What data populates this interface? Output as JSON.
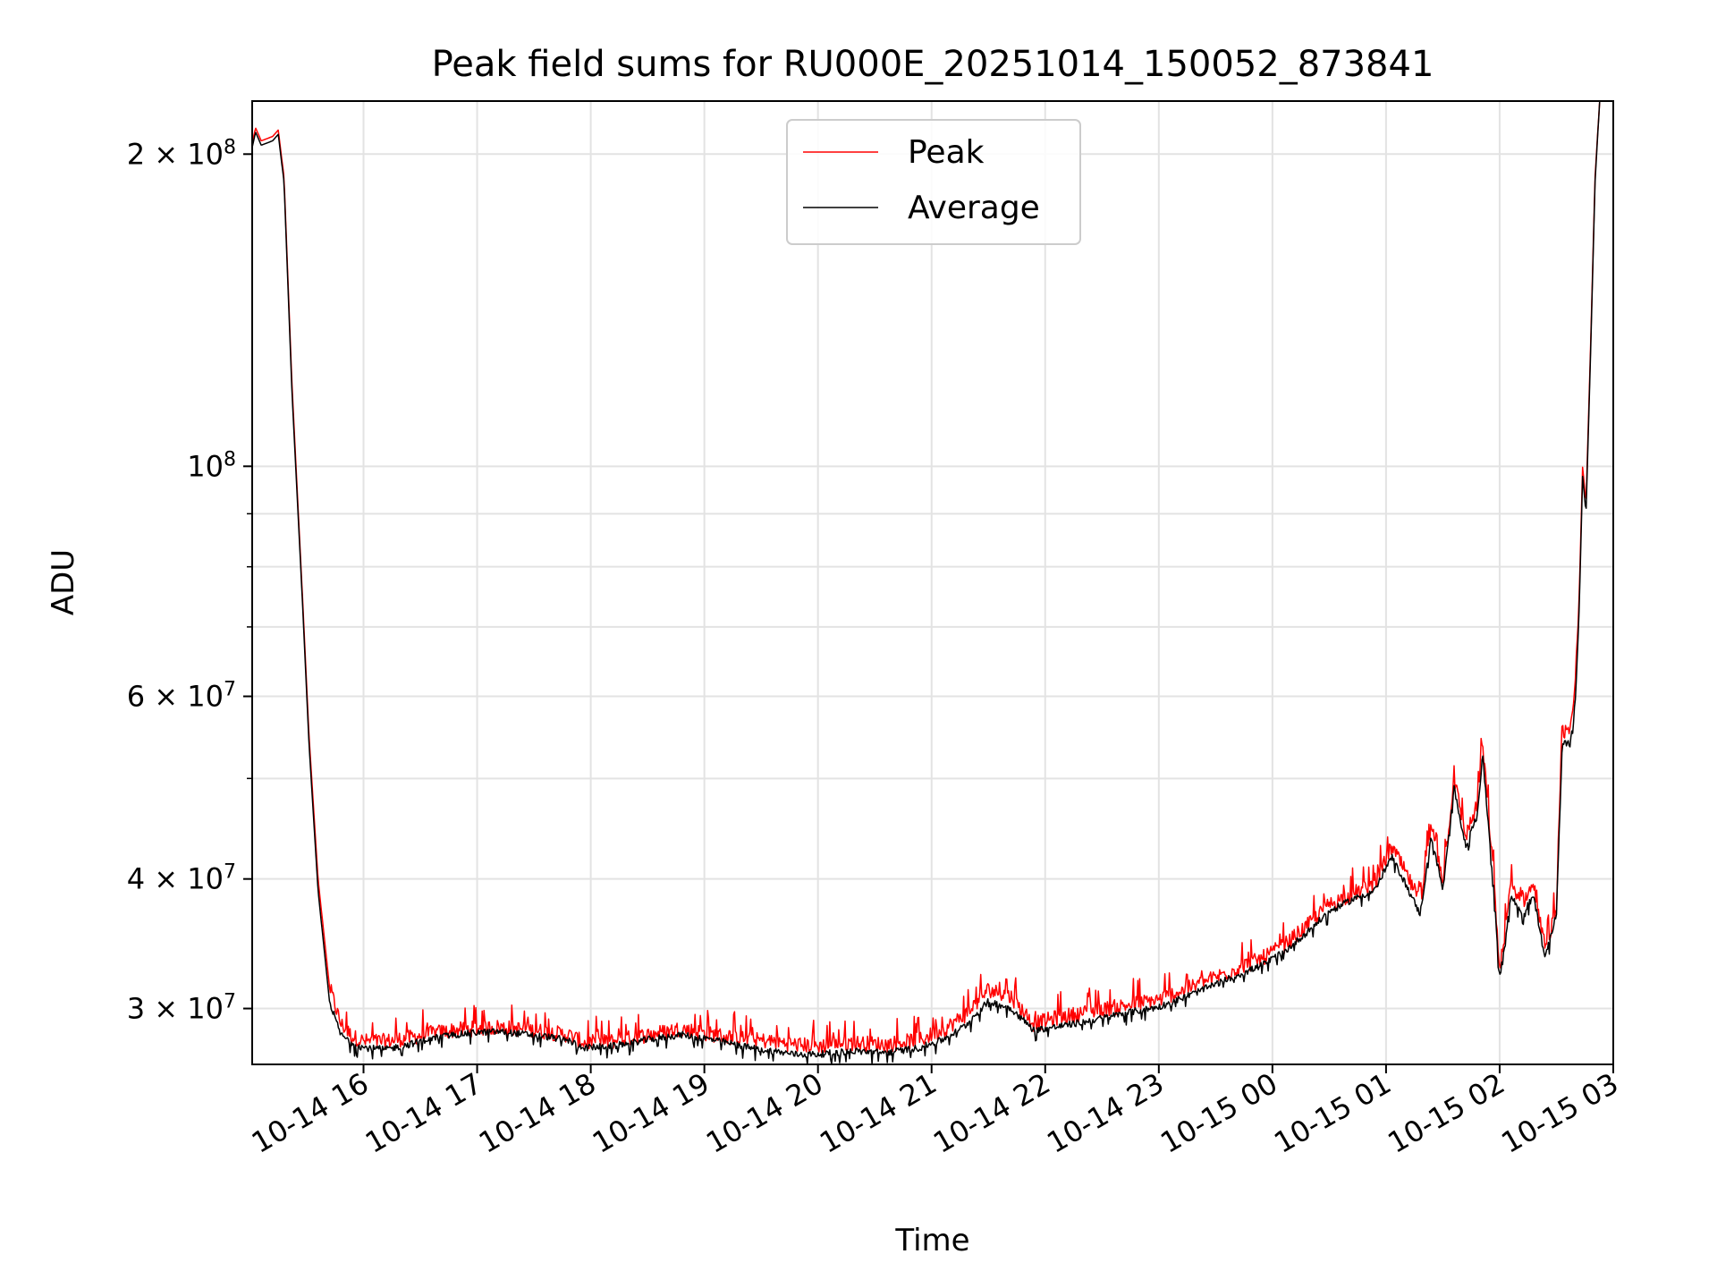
{
  "chart_data": {
    "type": "line",
    "title": "Peak field sums for RU000E_20251014_150052_873841",
    "xlabel": "Time",
    "ylabel": "ADU",
    "yscale": "log",
    "ylim": [
      26500000,
      225000000
    ],
    "xlim_hours": [
      15.02,
      27.0
    ],
    "grid": true,
    "legend_location": "upper center",
    "legend": [
      "Peak",
      "Average"
    ],
    "x_ticks": [
      {
        "hour": 16,
        "label": "10-14 16"
      },
      {
        "hour": 17,
        "label": "10-14 17"
      },
      {
        "hour": 18,
        "label": "10-14 18"
      },
      {
        "hour": 19,
        "label": "10-14 19"
      },
      {
        "hour": 20,
        "label": "10-14 20"
      },
      {
        "hour": 21,
        "label": "10-14 21"
      },
      {
        "hour": 22,
        "label": "10-14 22"
      },
      {
        "hour": 23,
        "label": "10-14 23"
      },
      {
        "hour": 24,
        "label": "10-15 00"
      },
      {
        "hour": 25,
        "label": "10-15 01"
      },
      {
        "hour": 26,
        "label": "10-15 02"
      },
      {
        "hour": 27,
        "label": "10-15 03"
      }
    ],
    "y_major_ticks": [
      {
        "value": 30000000,
        "mantissa": "3",
        "exp": "7"
      },
      {
        "value": 40000000,
        "mantissa": "4",
        "exp": "7"
      },
      {
        "value": 60000000,
        "mantissa": "6",
        "exp": "7"
      },
      {
        "value": 100000000,
        "mantissa": "",
        "exp": "8"
      },
      {
        "value": 200000000,
        "mantissa": "2",
        "exp": "8"
      }
    ],
    "y_minor_grid": [
      50000000,
      70000000,
      80000000,
      90000000
    ],
    "series": [
      {
        "name": "Peak",
        "color": "#ff0000",
        "noise": 0.035,
        "points": [
          [
            15.02,
            205000000
          ],
          [
            15.05,
            212000000
          ],
          [
            15.1,
            206000000
          ],
          [
            15.2,
            208000000
          ],
          [
            15.25,
            211000000
          ],
          [
            15.3,
            190000000
          ],
          [
            15.37,
            120000000
          ],
          [
            15.45,
            80000000
          ],
          [
            15.52,
            55000000
          ],
          [
            15.6,
            40000000
          ],
          [
            15.7,
            31500000
          ],
          [
            15.8,
            29000000
          ],
          [
            15.9,
            28200000
          ],
          [
            16.0,
            27900000
          ],
          [
            16.2,
            27900000
          ],
          [
            16.4,
            28100000
          ],
          [
            16.6,
            28400000
          ],
          [
            16.8,
            28600000
          ],
          [
            17.0,
            28700000
          ],
          [
            17.2,
            28800000
          ],
          [
            17.4,
            28650000
          ],
          [
            17.6,
            28500000
          ],
          [
            17.8,
            28300000
          ],
          [
            17.95,
            27800000
          ],
          [
            18.2,
            27900000
          ],
          [
            18.5,
            28300000
          ],
          [
            18.8,
            28700000
          ],
          [
            19.0,
            28400000
          ],
          [
            19.2,
            28200000
          ],
          [
            19.4,
            28000000
          ],
          [
            19.6,
            27900000
          ],
          [
            19.8,
            27700000
          ],
          [
            20.0,
            27600000
          ],
          [
            20.3,
            27800000
          ],
          [
            20.6,
            27700000
          ],
          [
            20.9,
            28000000
          ],
          [
            21.1,
            28600000
          ],
          [
            21.3,
            29600000
          ],
          [
            21.5,
            31300000
          ],
          [
            21.7,
            30800000
          ],
          [
            21.9,
            29000000
          ],
          [
            22.1,
            29400000
          ],
          [
            22.4,
            29800000
          ],
          [
            22.7,
            30200000
          ],
          [
            23.0,
            30600000
          ],
          [
            23.3,
            31500000
          ],
          [
            23.6,
            32500000
          ],
          [
            23.9,
            33500000
          ],
          [
            24.1,
            34500000
          ],
          [
            24.3,
            36000000
          ],
          [
            24.5,
            37800000
          ],
          [
            24.7,
            38700000
          ],
          [
            24.9,
            39500000
          ],
          [
            25.05,
            43000000
          ],
          [
            25.15,
            41000000
          ],
          [
            25.3,
            38000000
          ],
          [
            25.4,
            45000000
          ],
          [
            25.5,
            40000000
          ],
          [
            25.6,
            50000000
          ],
          [
            25.7,
            44000000
          ],
          [
            25.8,
            47000000
          ],
          [
            25.85,
            54000000
          ],
          [
            25.95,
            40000000
          ],
          [
            26.0,
            32500000
          ],
          [
            26.1,
            39500000
          ],
          [
            26.2,
            38000000
          ],
          [
            26.3,
            39500000
          ],
          [
            26.4,
            34000000
          ],
          [
            26.5,
            37500000
          ],
          [
            26.55,
            55500000
          ],
          [
            26.62,
            55000000
          ],
          [
            26.67,
            62000000
          ],
          [
            26.7,
            75000000
          ],
          [
            26.73,
            100000000
          ],
          [
            26.76,
            92000000
          ],
          [
            26.8,
            130000000
          ],
          [
            26.84,
            190000000
          ],
          [
            26.88,
            225000000
          ]
        ]
      },
      {
        "name": "Average",
        "color": "#000000",
        "noise": 0.015,
        "points": [
          [
            15.02,
            203000000
          ],
          [
            15.05,
            210000000
          ],
          [
            15.1,
            204000000
          ],
          [
            15.2,
            206000000
          ],
          [
            15.25,
            209000000
          ],
          [
            15.3,
            188000000
          ],
          [
            15.37,
            118000000
          ],
          [
            15.45,
            79000000
          ],
          [
            15.52,
            54000000
          ],
          [
            15.6,
            39000000
          ],
          [
            15.7,
            30500000
          ],
          [
            15.8,
            28300000
          ],
          [
            15.9,
            27800000
          ],
          [
            16.0,
            27500000
          ],
          [
            16.2,
            27400000
          ],
          [
            16.4,
            27700000
          ],
          [
            16.6,
            28100000
          ],
          [
            16.8,
            28300000
          ],
          [
            17.0,
            28450000
          ],
          [
            17.2,
            28500000
          ],
          [
            17.4,
            28350000
          ],
          [
            17.6,
            28200000
          ],
          [
            17.8,
            27950000
          ],
          [
            17.95,
            27500000
          ],
          [
            18.2,
            27600000
          ],
          [
            18.5,
            28000000
          ],
          [
            18.8,
            28300000
          ],
          [
            19.0,
            28100000
          ],
          [
            19.2,
            27800000
          ],
          [
            19.4,
            27500000
          ],
          [
            19.6,
            27300000
          ],
          [
            19.8,
            27100000
          ],
          [
            20.0,
            27100000
          ],
          [
            20.3,
            27300000
          ],
          [
            20.6,
            27200000
          ],
          [
            20.9,
            27500000
          ],
          [
            21.1,
            28000000
          ],
          [
            21.3,
            28900000
          ],
          [
            21.5,
            30500000
          ],
          [
            21.7,
            30000000
          ],
          [
            21.9,
            28600000
          ],
          [
            22.1,
            28800000
          ],
          [
            22.4,
            29200000
          ],
          [
            22.7,
            29700000
          ],
          [
            23.0,
            30100000
          ],
          [
            23.3,
            31000000
          ],
          [
            23.6,
            32000000
          ],
          [
            23.9,
            33000000
          ],
          [
            24.1,
            34000000
          ],
          [
            24.3,
            35500000
          ],
          [
            24.5,
            37200000
          ],
          [
            24.7,
            38200000
          ],
          [
            24.9,
            39000000
          ],
          [
            25.05,
            42000000
          ],
          [
            25.15,
            40000000
          ],
          [
            25.3,
            37000000
          ],
          [
            25.4,
            44000000
          ],
          [
            25.5,
            39000000
          ],
          [
            25.6,
            49000000
          ],
          [
            25.7,
            43000000
          ],
          [
            25.8,
            46000000
          ],
          [
            25.85,
            52500000
          ],
          [
            25.95,
            39000000
          ],
          [
            26.0,
            32000000
          ],
          [
            26.1,
            38500000
          ],
          [
            26.2,
            37000000
          ],
          [
            26.3,
            38500000
          ],
          [
            26.4,
            33500000
          ],
          [
            26.5,
            37000000
          ],
          [
            26.55,
            54000000
          ],
          [
            26.62,
            54000000
          ],
          [
            26.67,
            60000000
          ],
          [
            26.7,
            73000000
          ],
          [
            26.73,
            98000000
          ],
          [
            26.76,
            90000000
          ],
          [
            26.8,
            128000000
          ],
          [
            26.84,
            188000000
          ],
          [
            26.88,
            225000000
          ]
        ]
      }
    ]
  }
}
